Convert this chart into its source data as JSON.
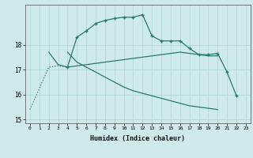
{
  "xlabel": "Humidex (Indice chaleur)",
  "bg_color": "#ceeaea",
  "line_color": "#2a7a6a",
  "grid_color": "#b0d8d8",
  "x_values": [
    0,
    1,
    2,
    3,
    4,
    5,
    6,
    7,
    8,
    9,
    10,
    11,
    12,
    13,
    14,
    15,
    16,
    17,
    18,
    19,
    20,
    21,
    22,
    23
  ],
  "line1_dotted": {
    "x": [
      0,
      1,
      2,
      3,
      4
    ],
    "y": [
      15.4,
      16.25,
      17.1,
      17.15,
      17.1
    ]
  },
  "line1_solid": {
    "x": [
      4,
      5,
      6,
      7,
      8,
      9,
      10,
      11,
      12,
      13,
      14,
      15,
      16,
      17,
      18,
      19,
      20,
      21,
      22
    ],
    "y": [
      17.1,
      18.3,
      18.55,
      18.85,
      18.97,
      19.05,
      19.1,
      19.1,
      19.2,
      18.35,
      18.15,
      18.15,
      18.15,
      17.85,
      17.6,
      17.6,
      17.65,
      16.9,
      15.95
    ]
  },
  "line2": {
    "x": [
      2,
      3,
      4,
      5,
      6,
      7,
      8,
      9,
      10,
      11,
      12,
      13,
      14,
      15,
      16,
      17,
      18,
      19,
      20
    ],
    "y": [
      17.7,
      17.2,
      17.1,
      17.15,
      17.2,
      17.25,
      17.3,
      17.35,
      17.4,
      17.45,
      17.5,
      17.55,
      17.6,
      17.65,
      17.7,
      17.65,
      17.6,
      17.55,
      17.55
    ]
  },
  "line3": {
    "x": [
      4,
      5,
      6,
      7,
      8,
      9,
      10,
      11,
      12,
      13,
      14,
      15,
      16,
      17,
      18,
      19,
      20
    ],
    "y": [
      17.7,
      17.3,
      17.1,
      16.9,
      16.7,
      16.5,
      16.3,
      16.15,
      16.05,
      15.95,
      15.85,
      15.75,
      15.65,
      15.55,
      15.5,
      15.45,
      15.4
    ]
  },
  "ylim": [
    14.85,
    19.6
  ],
  "yticks": [
    15,
    16,
    17,
    18
  ],
  "xlim": [
    -0.5,
    23.5
  ]
}
